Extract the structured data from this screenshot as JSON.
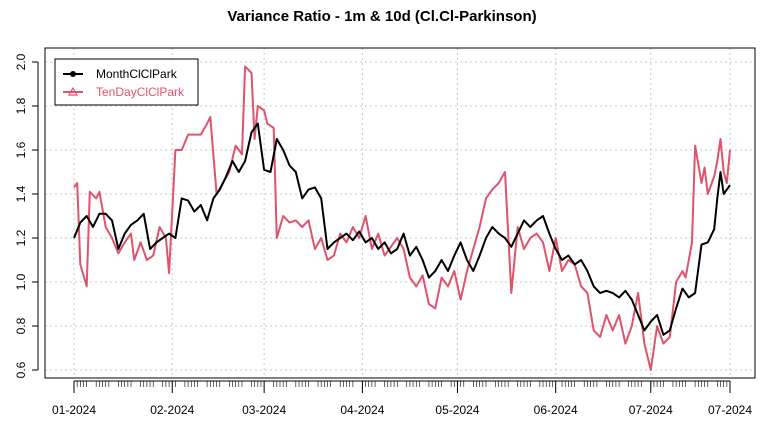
{
  "chart_data": {
    "type": "line",
    "title": "Variance Ratio - 1m & 10d (Cl.Cl-Parkinson)",
    "xlabel": "",
    "ylabel": "",
    "x_tick_labels": [
      "01-2024",
      "02-2024",
      "03-2024",
      "04-2024",
      "05-2024",
      "06-2024",
      "07-2024",
      "07-2024"
    ],
    "x_tick_dates": [
      "2024-01-01",
      "2024-02-01",
      "2024-03-01",
      "2024-04-01",
      "2024-05-01",
      "2024-06-01",
      "2024-07-01",
      "2024-07-26"
    ],
    "y_ticks": [
      0.6,
      0.8,
      1.0,
      1.2,
      1.4,
      1.6,
      1.8,
      2.0
    ],
    "y_tick_labels": [
      "0.6",
      "0.8",
      "1.0",
      "1.2",
      "1.4",
      "1.6",
      "1.8",
      "2.0"
    ],
    "ylim": [
      0.6,
      2.0
    ],
    "xlim": [
      "2024-01-01",
      "2024-07-26"
    ],
    "grid": true,
    "legend_position": "top-left",
    "series": [
      {
        "name": "MonthClClPark",
        "color": "#000000",
        "marker": "circle",
        "points": [
          [
            "2024-01-01",
            1.2
          ],
          [
            "2024-01-03",
            1.27
          ],
          [
            "2024-01-05",
            1.3
          ],
          [
            "2024-01-07",
            1.25
          ],
          [
            "2024-01-09",
            1.31
          ],
          [
            "2024-01-11",
            1.31
          ],
          [
            "2024-01-13",
            1.28
          ],
          [
            "2024-01-15",
            1.15
          ],
          [
            "2024-01-17",
            1.22
          ],
          [
            "2024-01-19",
            1.26
          ],
          [
            "2024-01-21",
            1.28
          ],
          [
            "2024-01-23",
            1.31
          ],
          [
            "2024-01-25",
            1.15
          ],
          [
            "2024-01-27",
            1.18
          ],
          [
            "2024-01-29",
            1.2
          ],
          [
            "2024-01-31",
            1.22
          ],
          [
            "2024-02-02",
            1.2
          ],
          [
            "2024-02-04",
            1.38
          ],
          [
            "2024-02-06",
            1.37
          ],
          [
            "2024-02-08",
            1.32
          ],
          [
            "2024-02-10",
            1.35
          ],
          [
            "2024-02-12",
            1.28
          ],
          [
            "2024-02-14",
            1.38
          ],
          [
            "2024-02-16",
            1.42
          ],
          [
            "2024-02-18",
            1.48
          ],
          [
            "2024-02-20",
            1.55
          ],
          [
            "2024-02-22",
            1.5
          ],
          [
            "2024-02-24",
            1.55
          ],
          [
            "2024-02-26",
            1.68
          ],
          [
            "2024-02-28",
            1.72
          ],
          [
            "2024-03-01",
            1.51
          ],
          [
            "2024-03-03",
            1.5
          ],
          [
            "2024-03-05",
            1.65
          ],
          [
            "2024-03-07",
            1.6
          ],
          [
            "2024-03-09",
            1.53
          ],
          [
            "2024-03-11",
            1.5
          ],
          [
            "2024-03-13",
            1.38
          ],
          [
            "2024-03-15",
            1.42
          ],
          [
            "2024-03-17",
            1.43
          ],
          [
            "2024-03-19",
            1.38
          ],
          [
            "2024-03-21",
            1.15
          ],
          [
            "2024-03-23",
            1.18
          ],
          [
            "2024-03-25",
            1.2
          ],
          [
            "2024-03-27",
            1.22
          ],
          [
            "2024-03-29",
            1.19
          ],
          [
            "2024-03-31",
            1.23
          ],
          [
            "2024-04-02",
            1.18
          ],
          [
            "2024-04-04",
            1.2
          ],
          [
            "2024-04-06",
            1.15
          ],
          [
            "2024-04-08",
            1.18
          ],
          [
            "2024-04-10",
            1.13
          ],
          [
            "2024-04-12",
            1.15
          ],
          [
            "2024-04-14",
            1.22
          ],
          [
            "2024-04-16",
            1.12
          ],
          [
            "2024-04-18",
            1.16
          ],
          [
            "2024-04-20",
            1.1
          ],
          [
            "2024-04-22",
            1.02
          ],
          [
            "2024-04-24",
            1.05
          ],
          [
            "2024-04-26",
            1.1
          ],
          [
            "2024-04-28",
            1.05
          ],
          [
            "2024-04-30",
            1.12
          ],
          [
            "2024-05-02",
            1.18
          ],
          [
            "2024-05-04",
            1.1
          ],
          [
            "2024-05-06",
            1.05
          ],
          [
            "2024-05-08",
            1.12
          ],
          [
            "2024-05-10",
            1.2
          ],
          [
            "2024-05-12",
            1.25
          ],
          [
            "2024-05-14",
            1.22
          ],
          [
            "2024-05-16",
            1.2
          ],
          [
            "2024-05-18",
            1.16
          ],
          [
            "2024-05-20",
            1.22
          ],
          [
            "2024-05-22",
            1.28
          ],
          [
            "2024-05-24",
            1.25
          ],
          [
            "2024-05-26",
            1.28
          ],
          [
            "2024-05-28",
            1.3
          ],
          [
            "2024-05-30",
            1.22
          ],
          [
            "2024-06-01",
            1.15
          ],
          [
            "2024-06-03",
            1.1
          ],
          [
            "2024-06-05",
            1.12
          ],
          [
            "2024-06-07",
            1.08
          ],
          [
            "2024-06-09",
            1.1
          ],
          [
            "2024-06-11",
            1.05
          ],
          [
            "2024-06-13",
            0.98
          ],
          [
            "2024-06-15",
            0.95
          ],
          [
            "2024-06-17",
            0.96
          ],
          [
            "2024-06-19",
            0.95
          ],
          [
            "2024-06-21",
            0.93
          ],
          [
            "2024-06-23",
            0.96
          ],
          [
            "2024-06-25",
            0.92
          ],
          [
            "2024-06-27",
            0.85
          ],
          [
            "2024-06-29",
            0.78
          ],
          [
            "2024-07-01",
            0.82
          ],
          [
            "2024-07-03",
            0.85
          ],
          [
            "2024-07-05",
            0.76
          ],
          [
            "2024-07-07",
            0.78
          ],
          [
            "2024-07-09",
            0.88
          ],
          [
            "2024-07-11",
            0.97
          ],
          [
            "2024-07-13",
            0.93
          ],
          [
            "2024-07-15",
            0.95
          ],
          [
            "2024-07-17",
            1.17
          ],
          [
            "2024-07-19",
            1.18
          ],
          [
            "2024-07-21",
            1.24
          ],
          [
            "2024-07-22",
            1.38
          ],
          [
            "2024-07-23",
            1.5
          ],
          [
            "2024-07-24",
            1.4
          ],
          [
            "2024-07-25",
            1.42
          ],
          [
            "2024-07-26",
            1.44
          ]
        ]
      },
      {
        "name": "TenDayClClPark",
        "color": "#DF536B",
        "marker": "triangle",
        "points": [
          [
            "2024-01-01",
            1.43
          ],
          [
            "2024-01-02",
            1.45
          ],
          [
            "2024-01-03",
            1.08
          ],
          [
            "2024-01-05",
            0.98
          ],
          [
            "2024-01-06",
            1.41
          ],
          [
            "2024-01-08",
            1.38
          ],
          [
            "2024-01-09",
            1.41
          ],
          [
            "2024-01-11",
            1.25
          ],
          [
            "2024-01-13",
            1.2
          ],
          [
            "2024-01-15",
            1.13
          ],
          [
            "2024-01-17",
            1.18
          ],
          [
            "2024-01-19",
            1.22
          ],
          [
            "2024-01-20",
            1.1
          ],
          [
            "2024-01-22",
            1.18
          ],
          [
            "2024-01-24",
            1.1
          ],
          [
            "2024-01-26",
            1.12
          ],
          [
            "2024-01-28",
            1.25
          ],
          [
            "2024-01-30",
            1.2
          ],
          [
            "2024-01-31",
            1.04
          ],
          [
            "2024-02-02",
            1.6
          ],
          [
            "2024-02-04",
            1.6
          ],
          [
            "2024-02-06",
            1.67
          ],
          [
            "2024-02-08",
            1.67
          ],
          [
            "2024-02-10",
            1.67
          ],
          [
            "2024-02-12",
            1.72
          ],
          [
            "2024-02-13",
            1.75
          ],
          [
            "2024-02-15",
            1.4
          ],
          [
            "2024-02-17",
            1.45
          ],
          [
            "2024-02-19",
            1.5
          ],
          [
            "2024-02-21",
            1.62
          ],
          [
            "2024-02-23",
            1.58
          ],
          [
            "2024-02-24",
            1.98
          ],
          [
            "2024-02-26",
            1.95
          ],
          [
            "2024-02-27",
            1.65
          ],
          [
            "2024-02-28",
            1.8
          ],
          [
            "2024-03-01",
            1.78
          ],
          [
            "2024-03-02",
            1.72
          ],
          [
            "2024-03-04",
            1.7
          ],
          [
            "2024-03-05",
            1.2
          ],
          [
            "2024-03-07",
            1.3
          ],
          [
            "2024-03-09",
            1.27
          ],
          [
            "2024-03-11",
            1.28
          ],
          [
            "2024-03-13",
            1.25
          ],
          [
            "2024-03-15",
            1.28
          ],
          [
            "2024-03-17",
            1.15
          ],
          [
            "2024-03-19",
            1.2
          ],
          [
            "2024-03-21",
            1.1
          ],
          [
            "2024-03-23",
            1.12
          ],
          [
            "2024-03-25",
            1.22
          ],
          [
            "2024-03-27",
            1.18
          ],
          [
            "2024-03-29",
            1.25
          ],
          [
            "2024-03-31",
            1.2
          ],
          [
            "2024-04-02",
            1.3
          ],
          [
            "2024-04-04",
            1.15
          ],
          [
            "2024-04-06",
            1.22
          ],
          [
            "2024-04-08",
            1.12
          ],
          [
            "2024-04-10",
            1.16
          ],
          [
            "2024-04-12",
            1.2
          ],
          [
            "2024-04-14",
            1.15
          ],
          [
            "2024-04-16",
            1.02
          ],
          [
            "2024-04-18",
            0.98
          ],
          [
            "2024-04-20",
            1.03
          ],
          [
            "2024-04-22",
            0.9
          ],
          [
            "2024-04-24",
            0.88
          ],
          [
            "2024-04-26",
            1.02
          ],
          [
            "2024-04-28",
            0.98
          ],
          [
            "2024-04-30",
            1.05
          ],
          [
            "2024-05-02",
            0.92
          ],
          [
            "2024-05-04",
            1.05
          ],
          [
            "2024-05-06",
            1.15
          ],
          [
            "2024-05-08",
            1.25
          ],
          [
            "2024-05-10",
            1.38
          ],
          [
            "2024-05-12",
            1.42
          ],
          [
            "2024-05-14",
            1.45
          ],
          [
            "2024-05-16",
            1.5
          ],
          [
            "2024-05-18",
            0.95
          ],
          [
            "2024-05-20",
            1.25
          ],
          [
            "2024-05-22",
            1.15
          ],
          [
            "2024-05-24",
            1.2
          ],
          [
            "2024-05-26",
            1.22
          ],
          [
            "2024-05-28",
            1.18
          ],
          [
            "2024-05-30",
            1.05
          ],
          [
            "2024-06-01",
            1.2
          ],
          [
            "2024-06-03",
            1.05
          ],
          [
            "2024-06-05",
            1.1
          ],
          [
            "2024-06-07",
            1.08
          ],
          [
            "2024-06-09",
            0.98
          ],
          [
            "2024-06-11",
            0.95
          ],
          [
            "2024-06-13",
            0.78
          ],
          [
            "2024-06-15",
            0.75
          ],
          [
            "2024-06-17",
            0.85
          ],
          [
            "2024-06-19",
            0.78
          ],
          [
            "2024-06-21",
            0.85
          ],
          [
            "2024-06-23",
            0.72
          ],
          [
            "2024-06-25",
            0.8
          ],
          [
            "2024-06-27",
            0.95
          ],
          [
            "2024-06-29",
            0.72
          ],
          [
            "2024-07-01",
            0.6
          ],
          [
            "2024-07-03",
            0.8
          ],
          [
            "2024-07-05",
            0.72
          ],
          [
            "2024-07-07",
            0.75
          ],
          [
            "2024-07-09",
            1.0
          ],
          [
            "2024-07-11",
            1.05
          ],
          [
            "2024-07-12",
            1.02
          ],
          [
            "2024-07-14",
            1.18
          ],
          [
            "2024-07-15",
            1.62
          ],
          [
            "2024-07-17",
            1.45
          ],
          [
            "2024-07-18",
            1.52
          ],
          [
            "2024-07-19",
            1.4
          ],
          [
            "2024-07-21",
            1.48
          ],
          [
            "2024-07-22",
            1.55
          ],
          [
            "2024-07-23",
            1.65
          ],
          [
            "2024-07-24",
            1.5
          ],
          [
            "2024-07-25",
            1.45
          ],
          [
            "2024-07-26",
            1.6
          ]
        ]
      }
    ]
  }
}
